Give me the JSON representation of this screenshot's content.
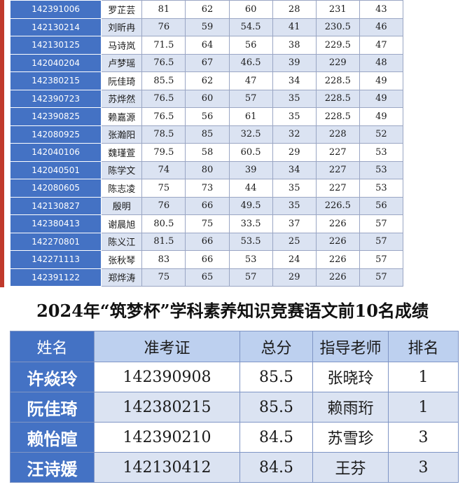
{
  "top_table": {
    "rows": [
      {
        "id": "142391006",
        "name": "罗芷芸",
        "s1": "81",
        "s2": "62",
        "s3": "60",
        "s4": "28",
        "total": "231",
        "rank": "43"
      },
      {
        "id": "142130214",
        "name": "刘昕冉",
        "s1": "76",
        "s2": "59",
        "s3": "54.5",
        "s4": "41",
        "total": "230.5",
        "rank": "46"
      },
      {
        "id": "142130125",
        "name": "马诗岚",
        "s1": "71.5",
        "s2": "64",
        "s3": "56",
        "s4": "38",
        "total": "229.5",
        "rank": "47"
      },
      {
        "id": "142040204",
        "name": "卢梦瑶",
        "s1": "76.5",
        "s2": "67",
        "s3": "46.5",
        "s4": "39",
        "total": "229",
        "rank": "48"
      },
      {
        "id": "142380215",
        "name": "阮佳琦",
        "s1": "85.5",
        "s2": "62",
        "s3": "47",
        "s4": "34",
        "total": "228.5",
        "rank": "49"
      },
      {
        "id": "142390723",
        "name": "苏烨然",
        "s1": "76.5",
        "s2": "60",
        "s3": "57",
        "s4": "35",
        "total": "228.5",
        "rank": "49"
      },
      {
        "id": "142390825",
        "name": "赖嘉源",
        "s1": "76.5",
        "s2": "56",
        "s3": "61",
        "s4": "35",
        "total": "228.5",
        "rank": "49"
      },
      {
        "id": "142080925",
        "name": "张瀚阳",
        "s1": "78.5",
        "s2": "85",
        "s3": "32.5",
        "s4": "32",
        "total": "228",
        "rank": "52"
      },
      {
        "id": "142040106",
        "name": "魏瑾萱",
        "s1": "79.5",
        "s2": "58",
        "s3": "60.5",
        "s4": "29",
        "total": "227",
        "rank": "53"
      },
      {
        "id": "142040501",
        "name": "陈学文",
        "s1": "74",
        "s2": "80",
        "s3": "39",
        "s4": "34",
        "total": "227",
        "rank": "53"
      },
      {
        "id": "142080605",
        "name": "陈志凌",
        "s1": "75",
        "s2": "73",
        "s3": "44",
        "s4": "35",
        "total": "227",
        "rank": "53"
      },
      {
        "id": "142130827",
        "name": "殷明",
        "s1": "76",
        "s2": "66",
        "s3": "49.5",
        "s4": "35",
        "total": "226.5",
        "rank": "56"
      },
      {
        "id": "142380413",
        "name": "谢晨旭",
        "s1": "80.5",
        "s2": "75",
        "s3": "33.5",
        "s4": "37",
        "total": "226",
        "rank": "57"
      },
      {
        "id": "142270801",
        "name": "陈义江",
        "s1": "81.5",
        "s2": "66",
        "s3": "53.5",
        "s4": "25",
        "total": "226",
        "rank": "57"
      },
      {
        "id": "142271113",
        "name": "张秋琴",
        "s1": "83",
        "s2": "66",
        "s3": "53",
        "s4": "24",
        "total": "226",
        "rank": "57"
      },
      {
        "id": "142391122",
        "name": "郑烨涛",
        "s1": "75",
        "s2": "65",
        "s3": "57",
        "s4": "29",
        "total": "226",
        "rank": "57"
      }
    ]
  },
  "title": "2024年“筑梦杯”学科素养知识竞赛语文前10名成绩",
  "rank_table": {
    "headers": {
      "name": "姓名",
      "id": "准考证",
      "score": "总分",
      "teacher": "指导老师",
      "rank": "排名"
    },
    "rows": [
      {
        "name": "许焱玲",
        "id": "142390908",
        "score": "85.5",
        "teacher": "张晓玲",
        "rank": "1"
      },
      {
        "name": "阮佳琦",
        "id": "142380215",
        "score": "85.5",
        "teacher": "赖雨珩",
        "rank": "1"
      },
      {
        "name": "赖怡暄",
        "id": "142390210",
        "score": "84.5",
        "teacher": "苏雪珍",
        "rank": "3"
      },
      {
        "name": "汪诗媛",
        "id": "142130412",
        "score": "84.5",
        "teacher": "王芬",
        "rank": "3"
      }
    ]
  },
  "colors": {
    "header_blue": "#4472c4",
    "band_light": "#dbe3f2",
    "header_light": "#bdd0ef",
    "left_strip": "#c0392b"
  }
}
